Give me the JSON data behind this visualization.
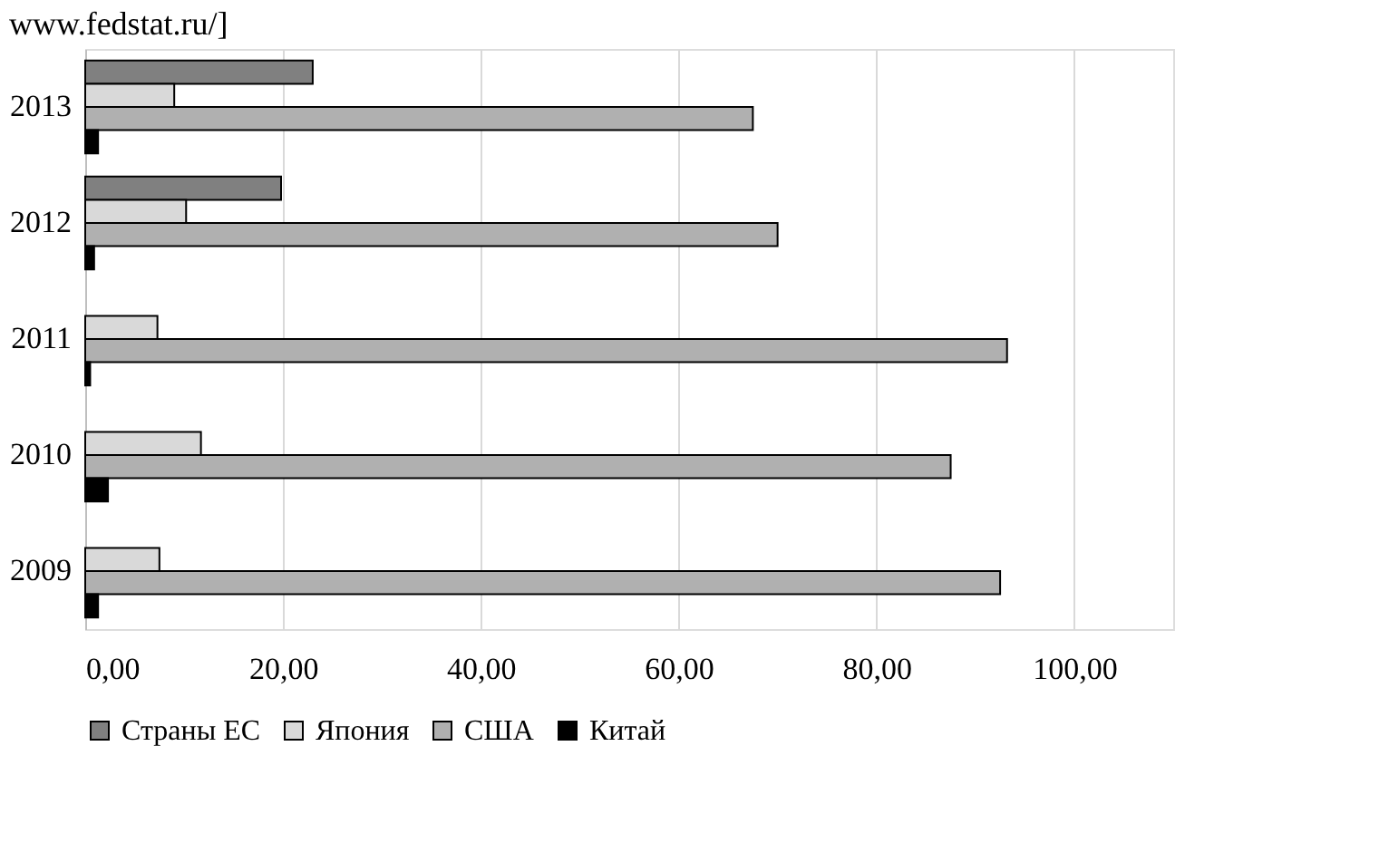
{
  "chart_data": {
    "type": "bar",
    "orientation": "horizontal",
    "categories": [
      "2013",
      "2012",
      "2011",
      "2010",
      "2009"
    ],
    "series": [
      {
        "name": "Страны ЕС",
        "color": "#808080",
        "values": [
          23,
          19.8,
          null,
          null,
          null
        ]
      },
      {
        "name": "Япония",
        "color": "#d9d9d9",
        "values": [
          9,
          10.2,
          7.3,
          11.7,
          7.5
        ]
      },
      {
        "name": "США",
        "color": "#b0b0b0",
        "values": [
          67.5,
          70,
          93.2,
          87.5,
          92.5
        ]
      },
      {
        "name": "Китай",
        "color": "#000000",
        "values": [
          1.3,
          0.9,
          0.5,
          2.3,
          1.3
        ]
      }
    ],
    "xlim": [
      0,
      110
    ],
    "xticks": [
      {
        "value": 0,
        "label": "0,00"
      },
      {
        "value": 20,
        "label": "20,00"
      },
      {
        "value": 40,
        "label": "40,00"
      },
      {
        "value": 60,
        "label": "60,00"
      },
      {
        "value": 80,
        "label": "80,00"
      },
      {
        "value": 100,
        "label": "100,00"
      }
    ],
    "grid": "x",
    "legend": "bottom",
    "annotations": [
      "www.fedstat.ru/]"
    ]
  }
}
